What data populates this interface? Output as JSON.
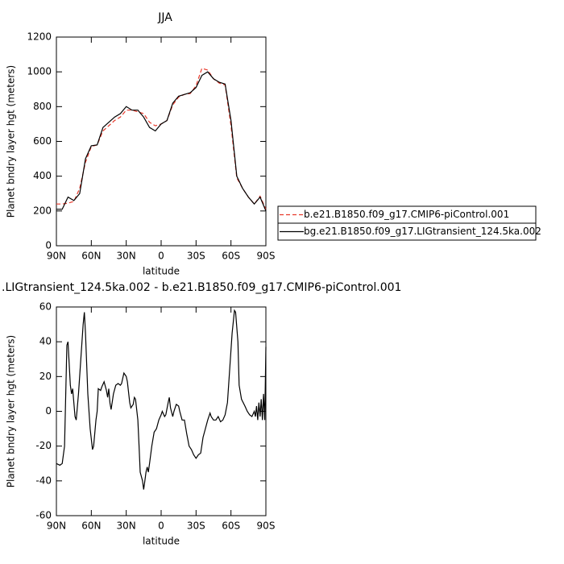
{
  "chart_data": [
    {
      "type": "line",
      "title": "JJA",
      "xlabel": "latitude",
      "ylabel": "Planet bndry layer hgt (meters)",
      "xlim": [
        90,
        -90
      ],
      "ylim": [
        0,
        1200
      ],
      "xticks": [
        {
          "value": 90,
          "label": "90N"
        },
        {
          "value": 60,
          "label": "60N"
        },
        {
          "value": 30,
          "label": "30N"
        },
        0,
        {
          "value": -30,
          "label": "30S"
        },
        {
          "value": -60,
          "label": "60S"
        },
        {
          "value": -90,
          "label": "90S"
        }
      ],
      "yticks": [
        0,
        200,
        400,
        600,
        800,
        1000,
        1200
      ],
      "legend": "right",
      "x": [
        90,
        85,
        80,
        75,
        70,
        65,
        60,
        55,
        50,
        45,
        40,
        35,
        30,
        25,
        20,
        15,
        10,
        5,
        0,
        -5,
        -10,
        -15,
        -20,
        -25,
        -30,
        -35,
        -40,
        -45,
        -50,
        -55,
        -60,
        -65,
        -70,
        -75,
        -80,
        -85,
        -90
      ],
      "series": [
        {
          "name": "b.e21.B1850.f09_g17.CMIP6-piControl.001",
          "color": "#e8392b",
          "linestyle": "dashed",
          "values": [
            240,
            240,
            245,
            255,
            330,
            480,
            570,
            580,
            660,
            690,
            720,
            740,
            780,
            780,
            770,
            760,
            710,
            690,
            700,
            720,
            810,
            855,
            870,
            875,
            920,
            1020,
            1010,
            960,
            935,
            925,
            690,
            390,
            330,
            280,
            240,
            285,
            210
          ]
        },
        {
          "name": "bg.e21.B1850.f09_g17.LIGtransient_124.5ka.002",
          "color": "#000000",
          "linestyle": "solid",
          "values": [
            210,
            210,
            280,
            260,
            300,
            500,
            575,
            580,
            680,
            710,
            740,
            760,
            800,
            780,
            780,
            740,
            680,
            660,
            700,
            720,
            820,
            860,
            870,
            880,
            910,
            980,
            1000,
            960,
            940,
            930,
            720,
            400,
            330,
            280,
            240,
            280,
            200
          ]
        }
      ]
    },
    {
      "type": "line",
      "title": ".LIGtransient_124.5ka.002 - b.e21.B1850.f09_g17.CMIP6-piControl.001",
      "xlabel": "latitude",
      "ylabel": "Planet bndry layer hgt (meters)",
      "xlim": [
        90,
        -90
      ],
      "ylim": [
        -60,
        60
      ],
      "xticks": [
        {
          "value": 90,
          "label": "90N"
        },
        {
          "value": 60,
          "label": "60N"
        },
        {
          "value": 30,
          "label": "30N"
        },
        0,
        {
          "value": -30,
          "label": "30S"
        },
        {
          "value": -60,
          "label": "60S"
        },
        {
          "value": -90,
          "label": "90S"
        }
      ],
      "yticks": [
        -60,
        -40,
        -20,
        0,
        20,
        40,
        60
      ],
      "x": [
        90,
        87,
        85,
        83,
        81,
        80,
        78,
        77,
        76,
        74,
        73,
        71,
        69,
        67,
        66,
        65,
        63,
        61,
        59,
        58,
        56,
        55,
        54,
        52,
        51,
        49,
        47,
        46,
        45,
        44,
        43,
        41,
        39,
        37,
        35,
        34,
        32,
        30,
        29,
        27,
        26,
        24,
        23,
        22,
        20,
        19,
        18,
        16,
        15,
        14,
        13,
        12,
        11,
        10,
        8,
        6,
        4,
        2,
        0,
        -1,
        -3,
        -4,
        -6,
        -7,
        -8,
        -10,
        -11,
        -13,
        -15,
        -16,
        -18,
        -20,
        -22,
        -24,
        -26,
        -28,
        -30,
        -32,
        -34,
        -36,
        -38,
        -40,
        -42,
        -43,
        -45,
        -47,
        -49,
        -51,
        -53,
        -55,
        -57,
        -59,
        -61,
        -63,
        -64,
        -66,
        -67,
        -69,
        -72,
        -74,
        -76,
        -78,
        -80,
        -81,
        -82,
        -83,
        -84,
        -85,
        -86,
        -87,
        -88,
        -89,
        -90
      ],
      "series": [
        {
          "name": null,
          "color": "#000000",
          "linestyle": "solid",
          "values": [
            -30,
            -31,
            -30,
            -20,
            38,
            40,
            15,
            10,
            13,
            -3,
            -5,
            10,
            30,
            50,
            57,
            45,
            10,
            -10,
            -22,
            -20,
            -5,
            0,
            13,
            12,
            14,
            17,
            12,
            8,
            13,
            5,
            1,
            10,
            15,
            16,
            15,
            16,
            22,
            20,
            17,
            5,
            2,
            4,
            8,
            7,
            -5,
            -20,
            -35,
            -40,
            -45,
            -40,
            -35,
            -32,
            -35,
            -30,
            -20,
            -12,
            -10,
            -5,
            -2,
            0,
            -3,
            -2,
            5,
            8,
            2,
            -3,
            0,
            4,
            3,
            0,
            -5,
            -5,
            -13,
            -20,
            -22,
            -25,
            -27,
            -25,
            -24,
            -15,
            -10,
            -5,
            -1,
            -3,
            -5,
            -5,
            -3,
            -6,
            -5,
            -2,
            5,
            25,
            45,
            58,
            57,
            40,
            15,
            7,
            3,
            0,
            -2,
            -3,
            0,
            -3,
            3,
            -5,
            5,
            -3,
            7,
            -5,
            10,
            -5,
            37
          ]
        }
      ]
    }
  ]
}
